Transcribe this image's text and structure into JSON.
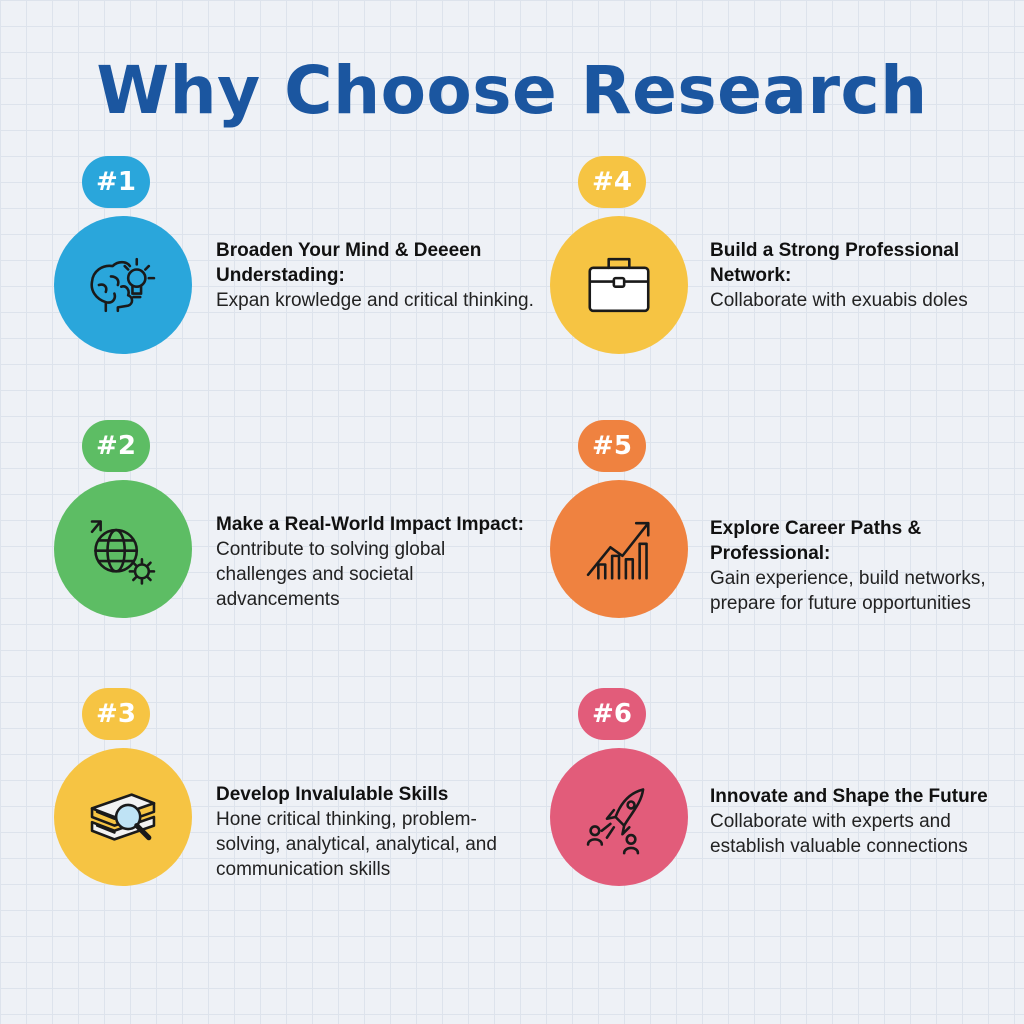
{
  "title": "Why Choose Research",
  "items": [
    {
      "badge": "#1",
      "heading": "Broaden Your Mind & Deeeen Understading:",
      "desc": "Expan krowledge and critical thinking.",
      "icon": "brain-lightbulb-icon",
      "color": "#2aa6db"
    },
    {
      "badge": "#2",
      "heading": "Make a Real-World Impact Impact:",
      "desc": "Contribute to solving global challenges and societal advancements",
      "icon": "globe-gear-icon",
      "color": "#5dbd64"
    },
    {
      "badge": "#3",
      "heading": "Develop Invalulable Skills",
      "desc": "Hone critical thinking, problem-solving, analytical, analytical, and communication skills",
      "icon": "books-magnifier-icon",
      "color": "#f6c443"
    },
    {
      "badge": "#4",
      "heading": "Build a Strong Professional Network:",
      "desc": "Collaborate with exuabis doles",
      "icon": "briefcase-icon",
      "color": "#f6c443"
    },
    {
      "badge": "#5",
      "heading": "Explore Career Paths & Professional:",
      "desc": "Gain experience, build networks, prepare for future opportunities",
      "icon": "growth-chart-icon",
      "color": "#ef8240"
    },
    {
      "badge": "#6",
      "heading": "Innovate and Shape the Future",
      "desc": "Collaborate with experts and establish valuable connections",
      "icon": "rocket-people-icon",
      "color": "#e25c7a"
    }
  ]
}
